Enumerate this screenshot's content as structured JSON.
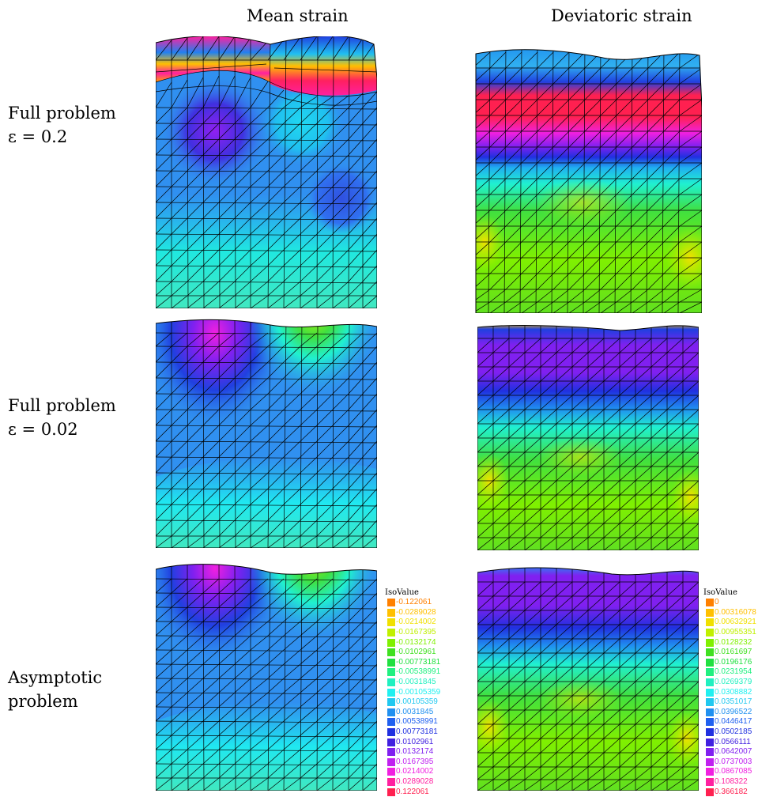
{
  "columns": [
    "Mean strain",
    "Deviatoric strain"
  ],
  "rows": [
    {
      "line1": "Full problem",
      "line2": "ε = 0.2"
    },
    {
      "line1": "Full problem",
      "line2": "ε = 0.02"
    },
    {
      "line1": "Asymptotic",
      "line2": "problem"
    }
  ],
  "legend_mean": {
    "title": "IsoValue",
    "entries": [
      {
        "value": "-0.122061",
        "color": "#ff8000"
      },
      {
        "value": "-0.0289028",
        "color": "#ffc000"
      },
      {
        "value": "-0.0214002",
        "color": "#f0e000"
      },
      {
        "value": "-0.0167395",
        "color": "#c0f000"
      },
      {
        "value": "-0.0132174",
        "color": "#80f000"
      },
      {
        "value": "-0.0102961",
        "color": "#40e020"
      },
      {
        "value": "-0.00773181",
        "color": "#20e040"
      },
      {
        "value": "-0.00538991",
        "color": "#20f080"
      },
      {
        "value": "-0.0031845",
        "color": "#20f0c0"
      },
      {
        "value": "-0.00105359",
        "color": "#20f0f0"
      },
      {
        "value": "0.00105359",
        "color": "#20c8f0"
      },
      {
        "value": "0.0031845",
        "color": "#2090f0"
      },
      {
        "value": "0.00538991",
        "color": "#2060f0"
      },
      {
        "value": "0.00773181",
        "color": "#2030e0"
      },
      {
        "value": "0.0102961",
        "color": "#4020e0"
      },
      {
        "value": "0.0132174",
        "color": "#8020f0"
      },
      {
        "value": "0.0167395",
        "color": "#c020f0"
      },
      {
        "value": "0.0214002",
        "color": "#f020e0"
      },
      {
        "value": "0.0289028",
        "color": "#ff20a0"
      },
      {
        "value": "0.122061",
        "color": "#ff2050"
      }
    ]
  },
  "legend_dev": {
    "title": "IsoValue",
    "entries": [
      {
        "value": "0",
        "color": "#ff8000"
      },
      {
        "value": "0.00316078",
        "color": "#ffc000"
      },
      {
        "value": "0.00632921",
        "color": "#f0e000"
      },
      {
        "value": "0.00955351",
        "color": "#c0f000"
      },
      {
        "value": "0.0128232",
        "color": "#80f000"
      },
      {
        "value": "0.0161697",
        "color": "#40e020"
      },
      {
        "value": "0.0196176",
        "color": "#20e040"
      },
      {
        "value": "0.0231954",
        "color": "#20f080"
      },
      {
        "value": "0.0269379",
        "color": "#20f0c0"
      },
      {
        "value": "0.0308882",
        "color": "#20f0f0"
      },
      {
        "value": "0.0351017",
        "color": "#20c8f0"
      },
      {
        "value": "0.0396522",
        "color": "#2090f0"
      },
      {
        "value": "0.0446417",
        "color": "#2060f0"
      },
      {
        "value": "0.0502185",
        "color": "#2030e0"
      },
      {
        "value": "0.0566111",
        "color": "#4020e0"
      },
      {
        "value": "0.0642007",
        "color": "#8020f0"
      },
      {
        "value": "0.0737003",
        "color": "#c020f0"
      },
      {
        "value": "0.0867085",
        "color": "#f020e0"
      },
      {
        "value": "0.108322",
        "color": "#ff20a0"
      },
      {
        "value": "0.366182",
        "color": "#ff2050"
      }
    ]
  }
}
